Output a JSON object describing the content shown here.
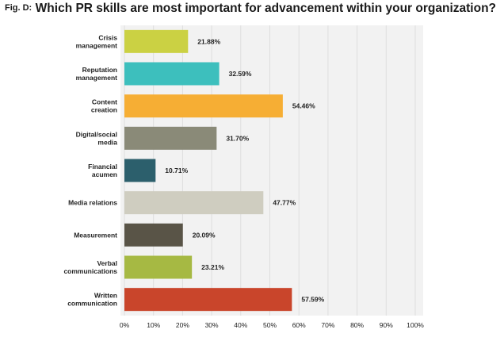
{
  "title": {
    "fig": "Fig. D:",
    "text": "Which PR skills are most important for advancement within your organization?"
  },
  "chart_data": {
    "type": "bar",
    "orientation": "horizontal",
    "categories": [
      [
        "Crisis",
        "management"
      ],
      [
        "Reputation",
        "management"
      ],
      [
        "Content",
        "creation"
      ],
      [
        "Digital/social",
        "media"
      ],
      [
        "Financial",
        "acumen"
      ],
      [
        "Media relations"
      ],
      [
        "Measurement"
      ],
      [
        "Verbal",
        "communications"
      ],
      [
        "Written",
        "communication"
      ]
    ],
    "values": [
      21.88,
      32.59,
      54.46,
      31.7,
      10.71,
      47.77,
      20.09,
      23.21,
      57.59
    ],
    "value_labels": [
      "21.88%",
      "32.59%",
      "54.46%",
      "31.70%",
      "10.71%",
      "47.77%",
      "20.09%",
      "23.21%",
      "57.59%"
    ],
    "colors": [
      "#cbd143",
      "#3dbfbd",
      "#f6ae34",
      "#8a8a78",
      "#2c5f6c",
      "#cfcdc0",
      "#595447",
      "#a6b943",
      "#c9452b"
    ],
    "xlim": [
      0,
      100
    ],
    "ticks": [
      "0%",
      "10%",
      "20%",
      "30%",
      "40%",
      "50%",
      "60%",
      "70%",
      "80%",
      "90%",
      "100%"
    ],
    "tick_values": [
      0,
      10,
      20,
      30,
      40,
      50,
      60,
      70,
      80,
      90,
      100
    ],
    "grid": true,
    "background": "#f2f2f2",
    "grid_color": "#dedede"
  }
}
